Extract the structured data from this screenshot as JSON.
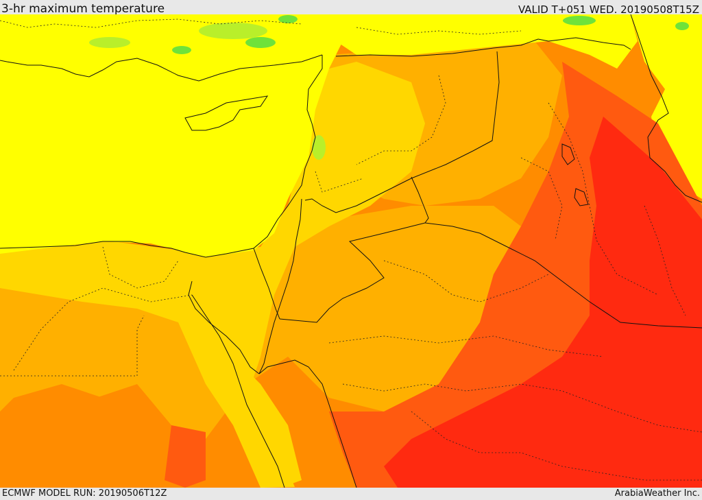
{
  "header": {
    "title": "3-hr maximum temperature",
    "valid": "VALID T+051 WED. 20190508T15Z"
  },
  "footer": {
    "model_run": "ECMWF MODEL RUN: 20190506T12Z",
    "credit": "ArabiaWeather Inc."
  },
  "map": {
    "palette": {
      "green": "#6fe23a",
      "light_green": "#b9ef2a",
      "yellow": "#ffff00",
      "yellow_orange": "#ffd700",
      "light_orange": "#ffb000",
      "orange": "#ff8c00",
      "dark_orange": "#ff5a10",
      "red": "#ff2a10"
    }
  }
}
